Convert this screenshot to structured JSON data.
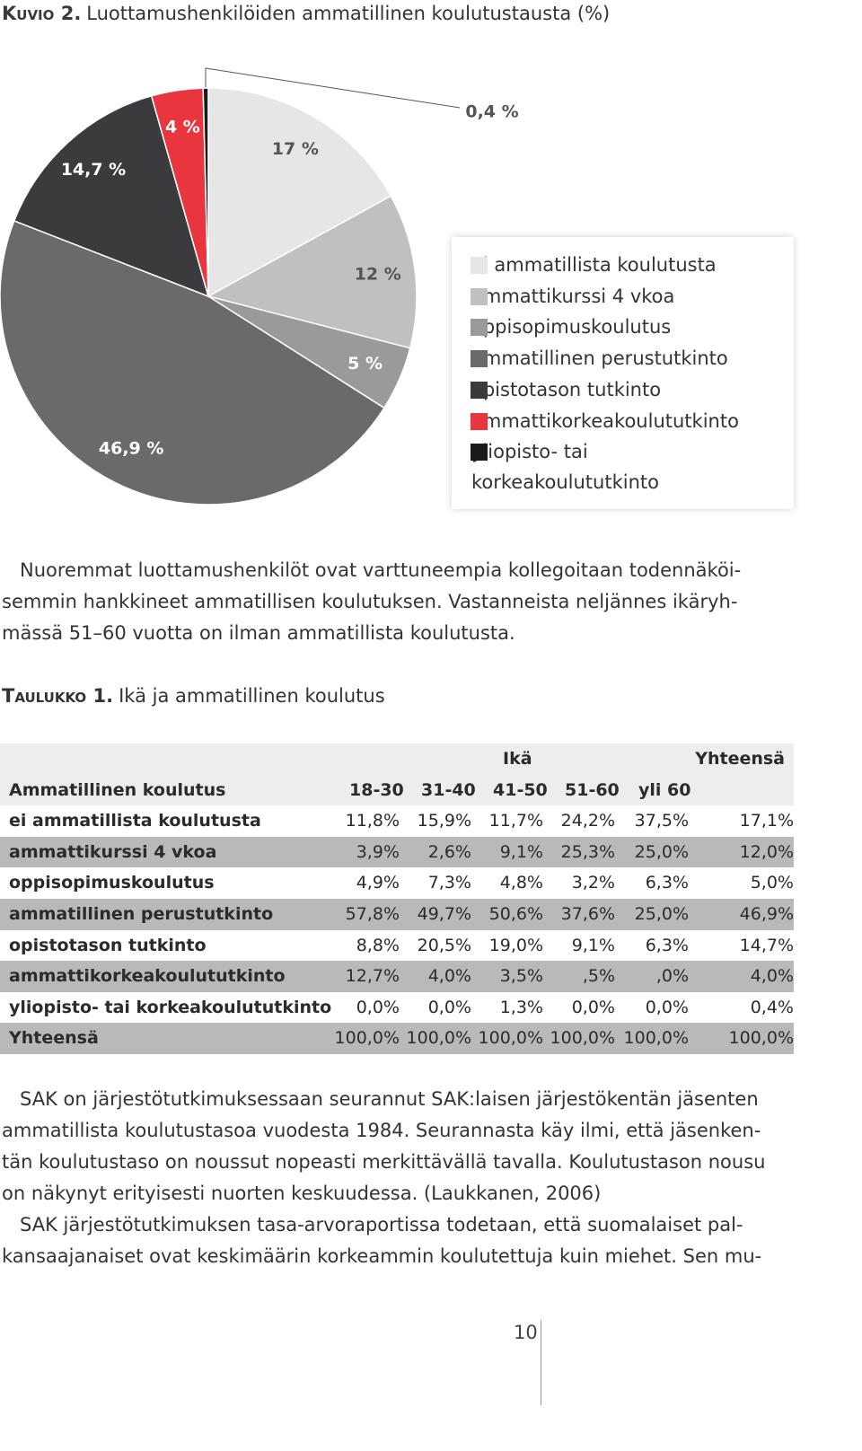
{
  "chart_data": {
    "type": "pie",
    "figure_label": "Kuvio 2.",
    "title": "Luottamushenkilöiden ammatillinen koulutustausta (%)",
    "categories": [
      "ei ammatillista koulutusta",
      "ammattikurssi 4 vkoa",
      "oppisopimuskoulutus",
      "ammatillinen perustutkinto",
      "opistotason tutkinto",
      "ammattikorkeakoulututkinto",
      "yliopisto- tai korkeakoulututkinto"
    ],
    "values": [
      17,
      12,
      5,
      46.9,
      14.7,
      4,
      0.4
    ],
    "value_labels": [
      "17 %",
      "12 %",
      "5 %",
      "46,9 %",
      "14,7 %",
      "4 %",
      "0,4 %"
    ],
    "colors": [
      "#e6e6e7",
      "#c0c0c1",
      "#9a9a9b",
      "#6a6a6c",
      "#3b3b3d",
      "#e8353e",
      "#1b1b1c"
    ]
  },
  "paragraph_1": [
    "Nuoremmat luottamushenkilöt ovat varttuneempia kollegoitaan todennäköi-",
    "semmin hankkineet ammatillisen koulutuksen. Vastanneista neljännes ikäryh-",
    "mässä 51–60 vuotta on ilman ammatillista koulutusta."
  ],
  "table": {
    "label": "Taulukko 1.",
    "title": "Ikä ja ammatillinen koulutus",
    "group_header": "Ikä",
    "total_header": "Yhteensä",
    "columns": [
      "Ammatillinen koulutus",
      "18-30",
      "31-40",
      "41-50",
      "51-60",
      "yli 60"
    ],
    "rows": [
      [
        "ei ammatillista koulutusta",
        "11,8%",
        "15,9%",
        "11,7%",
        "24,2%",
        "37,5%",
        "17,1%"
      ],
      [
        "ammattikurssi 4 vkoa",
        "3,9%",
        "2,6%",
        "9,1%",
        "25,3%",
        "25,0%",
        "12,0%"
      ],
      [
        "oppisopimuskoulutus",
        "4,9%",
        "7,3%",
        "4,8%",
        "3,2%",
        "6,3%",
        "5,0%"
      ],
      [
        "ammatillinen perustutkinto",
        "57,8%",
        "49,7%",
        "50,6%",
        "37,6%",
        "25,0%",
        "46,9%"
      ],
      [
        "opistotason tutkinto",
        "8,8%",
        "20,5%",
        "19,0%",
        "9,1%",
        "6,3%",
        "14,7%"
      ],
      [
        "ammattikorkeakoulututkinto",
        "12,7%",
        "4,0%",
        "3,5%",
        ",5%",
        ",0%",
        "4,0%"
      ],
      [
        "yliopisto- tai korkeakoulututkinto",
        "0,0%",
        "0,0%",
        "1,3%",
        "0,0%",
        "0,0%",
        "0,4%"
      ],
      [
        "Yhteensä",
        "100,0%",
        "100,0%",
        "100,0%",
        "100,0%",
        "100,0%",
        "100,0%"
      ]
    ]
  },
  "paragraph_2": [
    "SAK on järjestötutkimuksessaan seurannut SAK:laisen järjestökentän jäsenten",
    "ammatillista koulutustasoa vuodesta 1984. Seurannasta käy ilmi, että jäsenken-",
    "tän koulutustaso on noussut nopeasti merkittävällä tavalla. Koulutustason nousu",
    "on näkynyt erityisesti nuorten keskuudessa. (Laukkanen, 2006)",
    "SAK järjestötutkimuksen tasa-arvoraportissa todetaan, että suomalaiset pal-",
    "kansaajanaiset ovat keskimäärin korkeammin koulutettuja kuin miehet. Sen mu-"
  ],
  "page_number": "10"
}
